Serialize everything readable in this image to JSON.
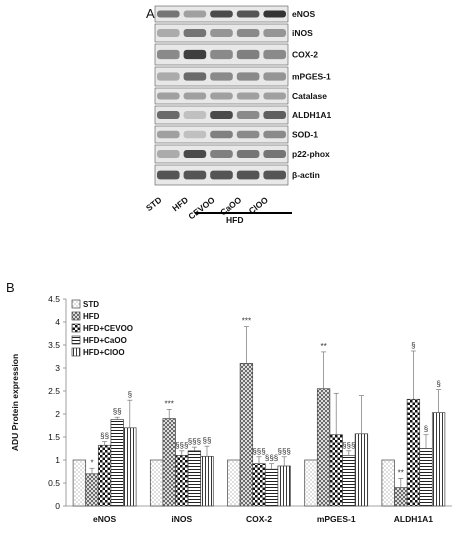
{
  "panel_a": {
    "label": "A",
    "blot_rows": [
      {
        "name": "eNOS",
        "intensities": [
          0.55,
          0.35,
          0.75,
          0.7,
          0.85
        ]
      },
      {
        "name": "iNOS",
        "intensities": [
          0.3,
          0.55,
          0.4,
          0.45,
          0.4
        ]
      },
      {
        "name": "COX-2",
        "intensities": [
          0.45,
          0.8,
          0.45,
          0.5,
          0.45
        ]
      },
      {
        "name": "mPGES-1",
        "intensities": [
          0.3,
          0.6,
          0.45,
          0.45,
          0.4
        ]
      },
      {
        "name": "Catalase",
        "intensities": [
          0.35,
          0.35,
          0.35,
          0.35,
          0.35
        ]
      },
      {
        "name": "ALDH1A1",
        "intensities": [
          0.6,
          0.2,
          0.75,
          0.45,
          0.65
        ]
      },
      {
        "name": "SOD-1",
        "intensities": [
          0.35,
          0.2,
          0.5,
          0.45,
          0.45
        ]
      },
      {
        "name": "p22-phox",
        "intensities": [
          0.3,
          0.75,
          0.5,
          0.55,
          0.55
        ]
      },
      {
        "name": "β-actin",
        "intensities": [
          0.7,
          0.7,
          0.7,
          0.7,
          0.7
        ]
      }
    ],
    "lanes": [
      "STD",
      "HFD",
      "CEVOO",
      "CaOO",
      "ClOO"
    ],
    "group_label": "HFD"
  },
  "panel_b": {
    "label": "B"
  },
  "chart_data": {
    "type": "bar",
    "title": "",
    "xlabel": "",
    "ylabel": "ADU Protein expression",
    "ylim": [
      0,
      4.5
    ],
    "yticks": [
      "0",
      "0.5",
      "1",
      "1.5",
      "2",
      "2.5",
      "3",
      "3.5",
      "4",
      "4.5"
    ],
    "categories": [
      "eNOS",
      "iNOS",
      "COX-2",
      "mPGES-1",
      "ALDH1A1"
    ],
    "legend_position": "top-left",
    "series": [
      {
        "name": "STD",
        "pattern": "dots",
        "values": [
          1.0,
          1.0,
          1.0,
          1.0,
          1.0
        ],
        "errors": [
          0,
          0,
          0,
          0,
          0
        ],
        "annotations": [
          "",
          "",
          "",
          "",
          ""
        ]
      },
      {
        "name": "HFD",
        "pattern": "crosshatch",
        "values": [
          0.7,
          1.9,
          3.1,
          2.55,
          0.4
        ],
        "errors": [
          0.12,
          0.2,
          0.8,
          0.8,
          0.2
        ],
        "annotations": [
          "*",
          "***",
          "***",
          "**",
          "**"
        ]
      },
      {
        "name": "HFD+CEVOO",
        "pattern": "checker",
        "values": [
          1.32,
          1.1,
          0.92,
          1.55,
          2.32
        ],
        "errors": [
          0.08,
          0.1,
          0.15,
          0.9,
          1.05
        ],
        "annotations": [
          "§§",
          "§§§",
          "§§§",
          "",
          "§"
        ]
      },
      {
        "name": "HFD+CaOO",
        "pattern": "hlines",
        "values": [
          1.88,
          1.2,
          0.8,
          1.1,
          1.25
        ],
        "errors": [
          0.05,
          0.08,
          0.12,
          0.1,
          0.3
        ],
        "annotations": [
          "§§",
          "§§§",
          "§§§",
          "§§§",
          "§"
        ]
      },
      {
        "name": "HFD+ClOO",
        "pattern": "vlines",
        "values": [
          1.7,
          1.08,
          0.87,
          1.57,
          2.03
        ],
        "errors": [
          0.6,
          0.22,
          0.2,
          0.83,
          0.5
        ],
        "annotations": [
          "§",
          "§§",
          "§§§",
          "",
          "§"
        ]
      }
    ]
  }
}
